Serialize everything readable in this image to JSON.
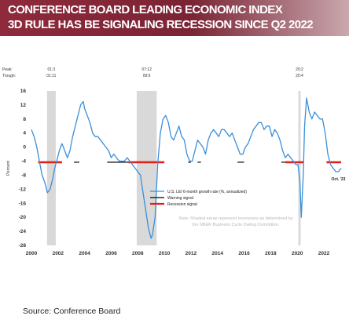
{
  "banner": {
    "line1": "CONFERENCE BOARD LEADING ECONOMIC INDEX",
    "line2": "3D RULE HAS BE SIGNALING RECESSION SINCE Q2 2022"
  },
  "source": "Source:  Conference  Board",
  "colors": {
    "banner": "#8e2a3b",
    "lei_line": "#3a8fdc",
    "warning": "#000000",
    "recession_signal": "#e0201b",
    "shading": "#d9d9d9"
  },
  "chart_data": {
    "type": "line",
    "title": "",
    "xlabel": "",
    "ylabel": "Percent",
    "xlim": [
      2000,
      2023.3
    ],
    "ylim": [
      -28,
      16
    ],
    "x_ticks": [
      2000,
      2002,
      2004,
      2006,
      2008,
      2010,
      2012,
      2014,
      2016,
      2018,
      2020,
      2022
    ],
    "y_ticks": [
      -28,
      -24,
      -20,
      -16,
      -12,
      -8,
      -4,
      0,
      4,
      8,
      12,
      16
    ],
    "legend": {
      "placement": "right-center",
      "entries": [
        {
          "label": "U.S. LEI 6-month growth rate (%, annualized)",
          "kind": "lei"
        },
        {
          "label": "Warning signal",
          "kind": "warning"
        },
        {
          "label": "Recession signal",
          "kind": "recession"
        }
      ]
    },
    "note": "Note: Shaded areas represent recessions as determined by the NBER Business Cycle Dating Committee.",
    "peak_label": "Peak:",
    "trough_label": "Trough:",
    "recessions": [
      {
        "start": 2001.17,
        "end": 2001.83,
        "peak": "01:3",
        "trough": "01:11"
      },
      {
        "start": 2007.92,
        "end": 2009.42,
        "peak": "07:12",
        "trough": "09:6"
      },
      {
        "start": 2020.08,
        "end": 2020.25,
        "peak": "20:2",
        "trough": "20:4"
      }
    ],
    "threshold": -4.3,
    "annotation": {
      "text": "Oct. '23",
      "x": 2022.8
    },
    "recession_signal_segments": [
      [
        2000.5,
        2002.3
      ],
      [
        2007.3,
        2010.0
      ],
      [
        2019.1,
        2020.5
      ],
      [
        2022.2,
        2023.3
      ]
    ],
    "warning_signal_segments": [
      [
        2003.2,
        2003.6
      ],
      [
        2005.7,
        2007.3
      ],
      [
        2011.8,
        2012.0
      ],
      [
        2012.5,
        2012.75
      ],
      [
        2015.5,
        2016.0
      ],
      [
        2018.8,
        2019.1
      ]
    ],
    "series": [
      {
        "name": "U.S. LEI 6-month growth rate (%, annualized)",
        "x": [
          2000.0,
          2000.2,
          2000.4,
          2000.6,
          2000.8,
          2001.0,
          2001.2,
          2001.4,
          2001.6,
          2001.75,
          2001.9,
          2002.1,
          2002.3,
          2002.5,
          2002.7,
          2002.9,
          2003.1,
          2003.3,
          2003.5,
          2003.7,
          2003.9,
          2004.0,
          2004.2,
          2004.4,
          2004.6,
          2004.8,
          2005.0,
          2005.2,
          2005.4,
          2005.6,
          2005.8,
          2006.0,
          2006.2,
          2006.4,
          2006.6,
          2006.8,
          2007.0,
          2007.2,
          2007.4,
          2007.6,
          2007.8,
          2008.0,
          2008.2,
          2008.4,
          2008.6,
          2008.8,
          2009.0,
          2009.1,
          2009.3,
          2009.5,
          2009.7,
          2009.9,
          2010.1,
          2010.3,
          2010.5,
          2010.7,
          2010.9,
          2011.1,
          2011.3,
          2011.5,
          2011.7,
          2011.9,
          2012.1,
          2012.3,
          2012.5,
          2012.7,
          2012.9,
          2013.1,
          2013.3,
          2013.5,
          2013.7,
          2013.9,
          2014.1,
          2014.3,
          2014.5,
          2014.7,
          2014.9,
          2015.1,
          2015.3,
          2015.5,
          2015.7,
          2015.9,
          2016.1,
          2016.3,
          2016.5,
          2016.7,
          2016.9,
          2017.1,
          2017.3,
          2017.5,
          2017.7,
          2017.9,
          2018.1,
          2018.3,
          2018.5,
          2018.7,
          2018.9,
          2019.1,
          2019.3,
          2019.5,
          2019.7,
          2019.9,
          2020.05,
          2020.2,
          2020.3,
          2020.45,
          2020.55,
          2020.7,
          2020.9,
          2021.1,
          2021.3,
          2021.5,
          2021.7,
          2021.9,
          2022.1,
          2022.3,
          2022.5,
          2022.7,
          2022.9,
          2023.1,
          2023.3
        ],
        "values": [
          5,
          3,
          0,
          -4,
          -8,
          -10,
          -13,
          -12,
          -9,
          -6,
          -4,
          -1,
          1,
          -1,
          -3,
          -1,
          3,
          6,
          9,
          12,
          13,
          11,
          9,
          7,
          4,
          3,
          3,
          2,
          1,
          0,
          -1,
          -3,
          -2,
          -3,
          -4,
          -4,
          -4,
          -3,
          -4,
          -5,
          -6,
          -7,
          -8,
          -13,
          -18,
          -23,
          -26,
          -25,
          -20,
          -5,
          4,
          8,
          9,
          7,
          3,
          2,
          4,
          6,
          3,
          2,
          -2,
          -4,
          -4,
          -1,
          2,
          1,
          0,
          -2,
          2,
          4,
          5,
          4,
          3,
          5,
          5,
          4,
          3,
          4,
          2,
          0,
          -2,
          -2,
          0,
          1,
          3,
          5,
          6,
          7,
          7,
          5,
          6,
          6,
          3,
          5,
          4,
          2,
          -1,
          -3,
          -2,
          -3,
          -4,
          -5,
          -5,
          -10,
          -20,
          -8,
          6,
          14,
          10,
          8,
          10,
          9,
          8,
          8,
          4,
          -2,
          -5,
          -6,
          -7,
          -7,
          -6
        ]
      }
    ]
  }
}
